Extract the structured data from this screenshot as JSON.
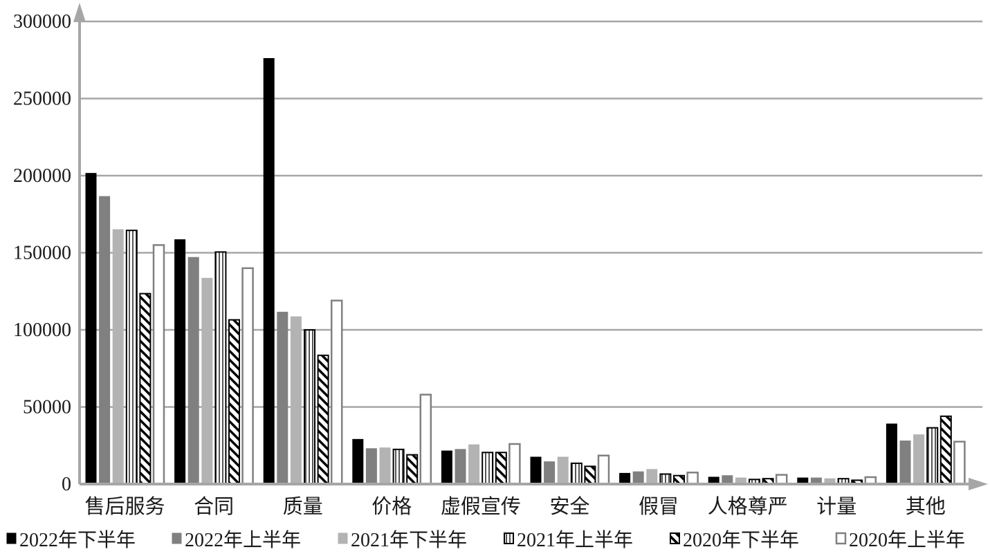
{
  "chart_data": {
    "type": "bar",
    "title": "",
    "xlabel": "",
    "ylabel": "",
    "ylim": [
      0,
      300000
    ],
    "yticks": [
      0,
      50000,
      100000,
      150000,
      200000,
      250000,
      300000
    ],
    "ytick_labels": [
      "0",
      "50000",
      "100000",
      "150000",
      "200000",
      "250000",
      "300000"
    ],
    "grid": true,
    "legend_position": "bottom",
    "categories": [
      "售后服务",
      "合同",
      "质量",
      "价格",
      "虚假宣传",
      "安全",
      "假冒",
      "人格尊严",
      "计量",
      "其他"
    ],
    "series": [
      {
        "name": "2022年下半年",
        "style": "solid-black",
        "color": "#000000",
        "values": [
          201500,
          158500,
          276000,
          29000,
          21500,
          17500,
          7000,
          4500,
          4000,
          39000
        ]
      },
      {
        "name": "2022年上半年",
        "style": "solid-darkgray",
        "color": "#808080",
        "values": [
          186500,
          147000,
          111500,
          23000,
          22500,
          14500,
          8000,
          5500,
          4000,
          28000
        ]
      },
      {
        "name": "2021年下半年",
        "style": "solid-lightgray",
        "color": "#b3b3b3",
        "values": [
          165000,
          133500,
          108500,
          23500,
          25500,
          17500,
          9500,
          4000,
          3500,
          32000
        ]
      },
      {
        "name": "2021年上半年",
        "style": "vertical-lines",
        "color": "#000000",
        "values": [
          164500,
          150500,
          100000,
          22500,
          20500,
          13500,
          6500,
          3000,
          3500,
          36500
        ]
      },
      {
        "name": "2020年下半年",
        "style": "diagonal-hatch",
        "color": "#000000",
        "values": [
          123500,
          106500,
          83500,
          19000,
          20500,
          11500,
          5500,
          3500,
          2500,
          44000
        ]
      },
      {
        "name": "2020年上半年",
        "style": "hollow",
        "color": "#808080",
        "values": [
          155000,
          140000,
          119000,
          58000,
          26000,
          18500,
          7500,
          6000,
          4500,
          27500
        ]
      }
    ]
  }
}
